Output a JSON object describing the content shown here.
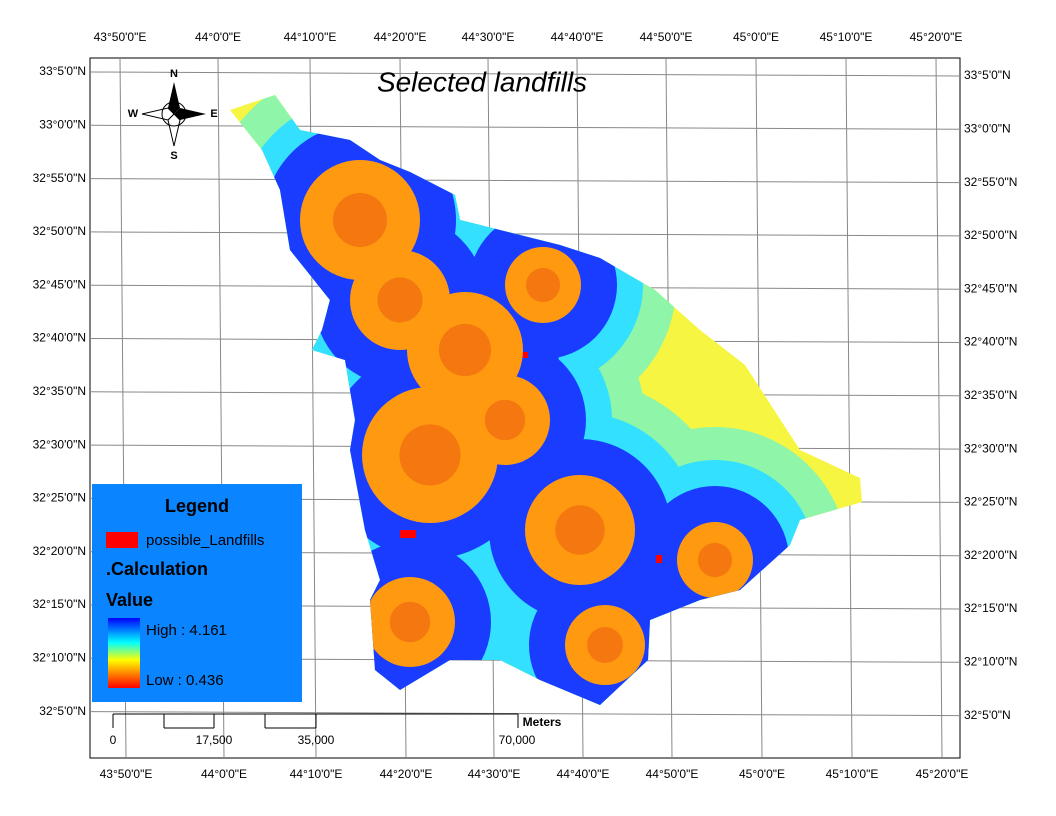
{
  "title": "Selected landfills",
  "compass": {
    "north": "N",
    "south": "S",
    "east": "E",
    "west": "W"
  },
  "longitude_labels": [
    "43°50'0\"E",
    "44°0'0\"E",
    "44°10'0\"E",
    "44°20'0\"E",
    "44°30'0\"E",
    "44°40'0\"E",
    "44°50'0\"E",
    "45°0'0\"E",
    "45°10'0\"E",
    "45°20'0\"E"
  ],
  "latitude_labels": [
    "33°5'0\"N",
    "33°0'0\"N",
    "32°55'0\"N",
    "32°50'0\"N",
    "32°45'0\"N",
    "32°40'0\"N",
    "32°35'0\"N",
    "32°30'0\"N",
    "32°25'0\"N",
    "32°20'0\"N",
    "32°15'0\"N",
    "32°10'0\"N",
    "32°5'0\"N"
  ],
  "legend": {
    "title": "Legend",
    "items": [
      {
        "label": "possible_Landfills",
        "color": "#ff0000"
      }
    ],
    "layer": ".Calculation",
    "field": "Value",
    "high": "High : 4.161",
    "low": "Low : 0.436"
  },
  "scale_bar": {
    "unit": "Meters",
    "labels": [
      "0",
      "17,500",
      "35,000",
      "70,000"
    ]
  }
}
